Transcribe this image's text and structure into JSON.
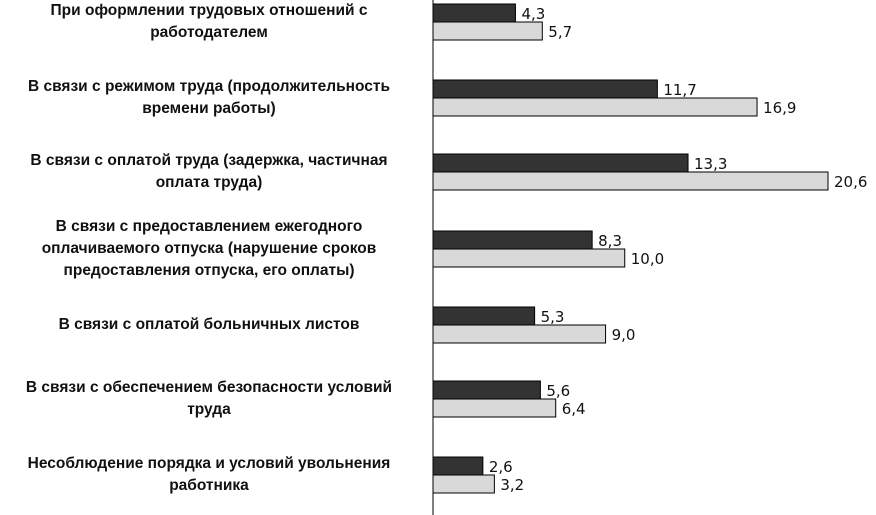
{
  "chart_data": {
    "type": "bar",
    "orientation": "horizontal",
    "categories": [
      "При оформлении трудовых отношений с\nработодателем",
      "В связи с режимом труда (продолжительность\nвремени работы)",
      "В связи с оплатой труда (задержка, частичная\nоплата труда)",
      "В связи с предоставлением ежегодного\nоплачиваемого отпуска (нарушение сроков\nпредоставления отпуска, его оплаты)",
      "В связи с оплатой больничных листов",
      "В связи с обеспечением безопасности условий\nтруда",
      "Несоблюдение порядка и условий увольнения\nработника"
    ],
    "series": [
      {
        "values": [
          4.3,
          11.7,
          13.3,
          8.3,
          5.3,
          5.6,
          2.6
        ],
        "labels": [
          "4,3",
          "11,7",
          "13,3",
          "8,3",
          "5,3",
          "5,6",
          "2,6"
        ],
        "color": "#333333"
      },
      {
        "values": [
          5.7,
          16.9,
          20.6,
          10.0,
          9.0,
          6.4,
          3.2
        ],
        "labels": [
          "5,7",
          "16,9",
          "20,6",
          "10,0",
          "9,0",
          "6,4",
          "3,2"
        ],
        "color": "#d9d9d9"
      }
    ],
    "xlim": [
      0,
      20.6
    ],
    "grid": false,
    "legend": "none"
  }
}
